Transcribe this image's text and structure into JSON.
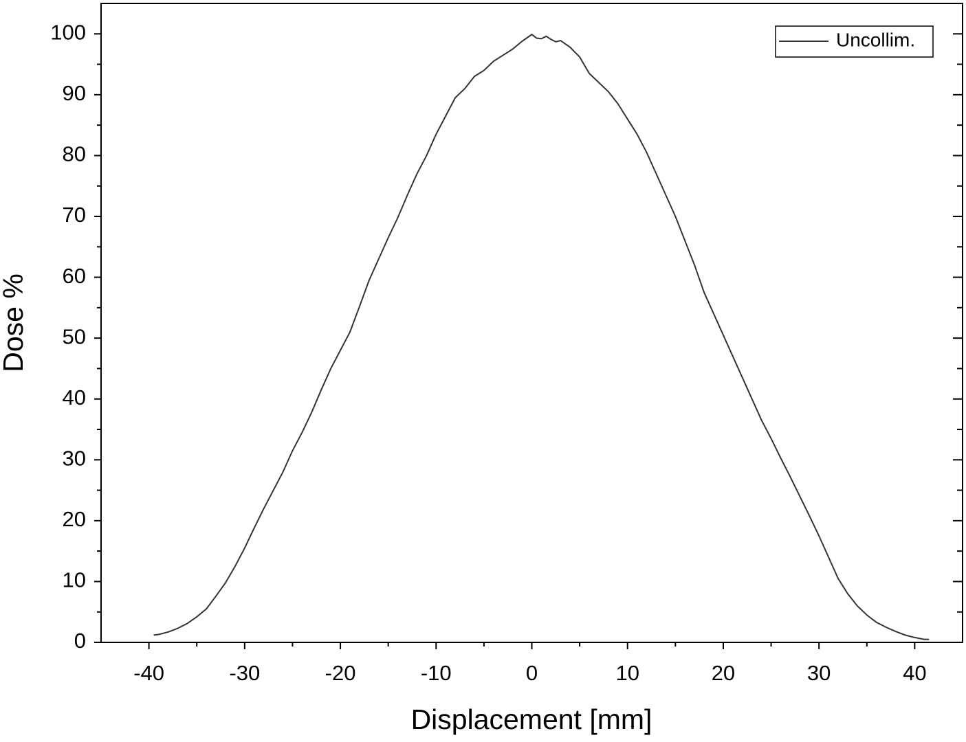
{
  "chart_data": {
    "type": "line",
    "xlabel": "Displacement [mm]",
    "ylabel": "Dose %",
    "x": [
      -39.5,
      -39,
      -38,
      -37,
      -36,
      -35,
      -34,
      -33,
      -32,
      -31,
      -30,
      -29,
      -28,
      -27,
      -26,
      -25,
      -24,
      -23,
      -22,
      -21,
      -20,
      -19,
      -18,
      -17,
      -16,
      -15,
      -14,
      -13,
      -12,
      -11,
      -10,
      -9,
      -8,
      -7,
      -6,
      -5,
      -4,
      -3,
      -2,
      -1,
      0,
      0.5,
      1,
      1.5,
      2,
      2.5,
      3,
      4,
      5,
      6,
      7,
      8,
      9,
      10,
      11,
      12,
      13,
      14,
      15,
      16,
      17,
      18,
      19,
      20,
      21,
      22,
      23,
      24,
      25,
      26,
      27,
      28,
      29,
      30,
      31,
      32,
      33,
      34,
      35,
      36,
      37,
      38,
      39,
      40,
      41,
      41.5
    ],
    "series": [
      {
        "name": "Uncollim.",
        "color": "#333333",
        "values": [
          1.2,
          1.3,
          1.7,
          2.3,
          3.1,
          4.2,
          5.5,
          7.6,
          9.8,
          12.5,
          15.5,
          18.8,
          22,
          25,
          28,
          31.5,
          34.5,
          37.8,
          41.5,
          45,
          48,
          51,
          55.2,
          59.5,
          63,
          66.5,
          69.8,
          73.5,
          77,
          80,
          83.5,
          86.5,
          89.5,
          91,
          93,
          94,
          95.5,
          96.5,
          97.5,
          98.8,
          99.9,
          99.3,
          99.2,
          99.6,
          99.1,
          98.7,
          98.9,
          97.8,
          96.2,
          93.5,
          92,
          90.5,
          88.5,
          86,
          83.5,
          80.5,
          77,
          73.5,
          70,
          66,
          62,
          57.5,
          54,
          50.5,
          47,
          43.5,
          40,
          36.5,
          33.5,
          30.3,
          27.2,
          24,
          20.8,
          17.5,
          14,
          10.5,
          8,
          6,
          4.5,
          3.3,
          2.5,
          1.8,
          1.2,
          0.8,
          0.5,
          0.5
        ]
      }
    ],
    "xlim": [
      -45,
      45
    ],
    "xticks": [
      -40,
      -30,
      -20,
      -10,
      0,
      10,
      20,
      30,
      40
    ],
    "ylim": [
      0,
      105
    ],
    "yticks": [
      0,
      10,
      20,
      30,
      40,
      50,
      60,
      70,
      80,
      90,
      100
    ],
    "legend": "upper right"
  }
}
